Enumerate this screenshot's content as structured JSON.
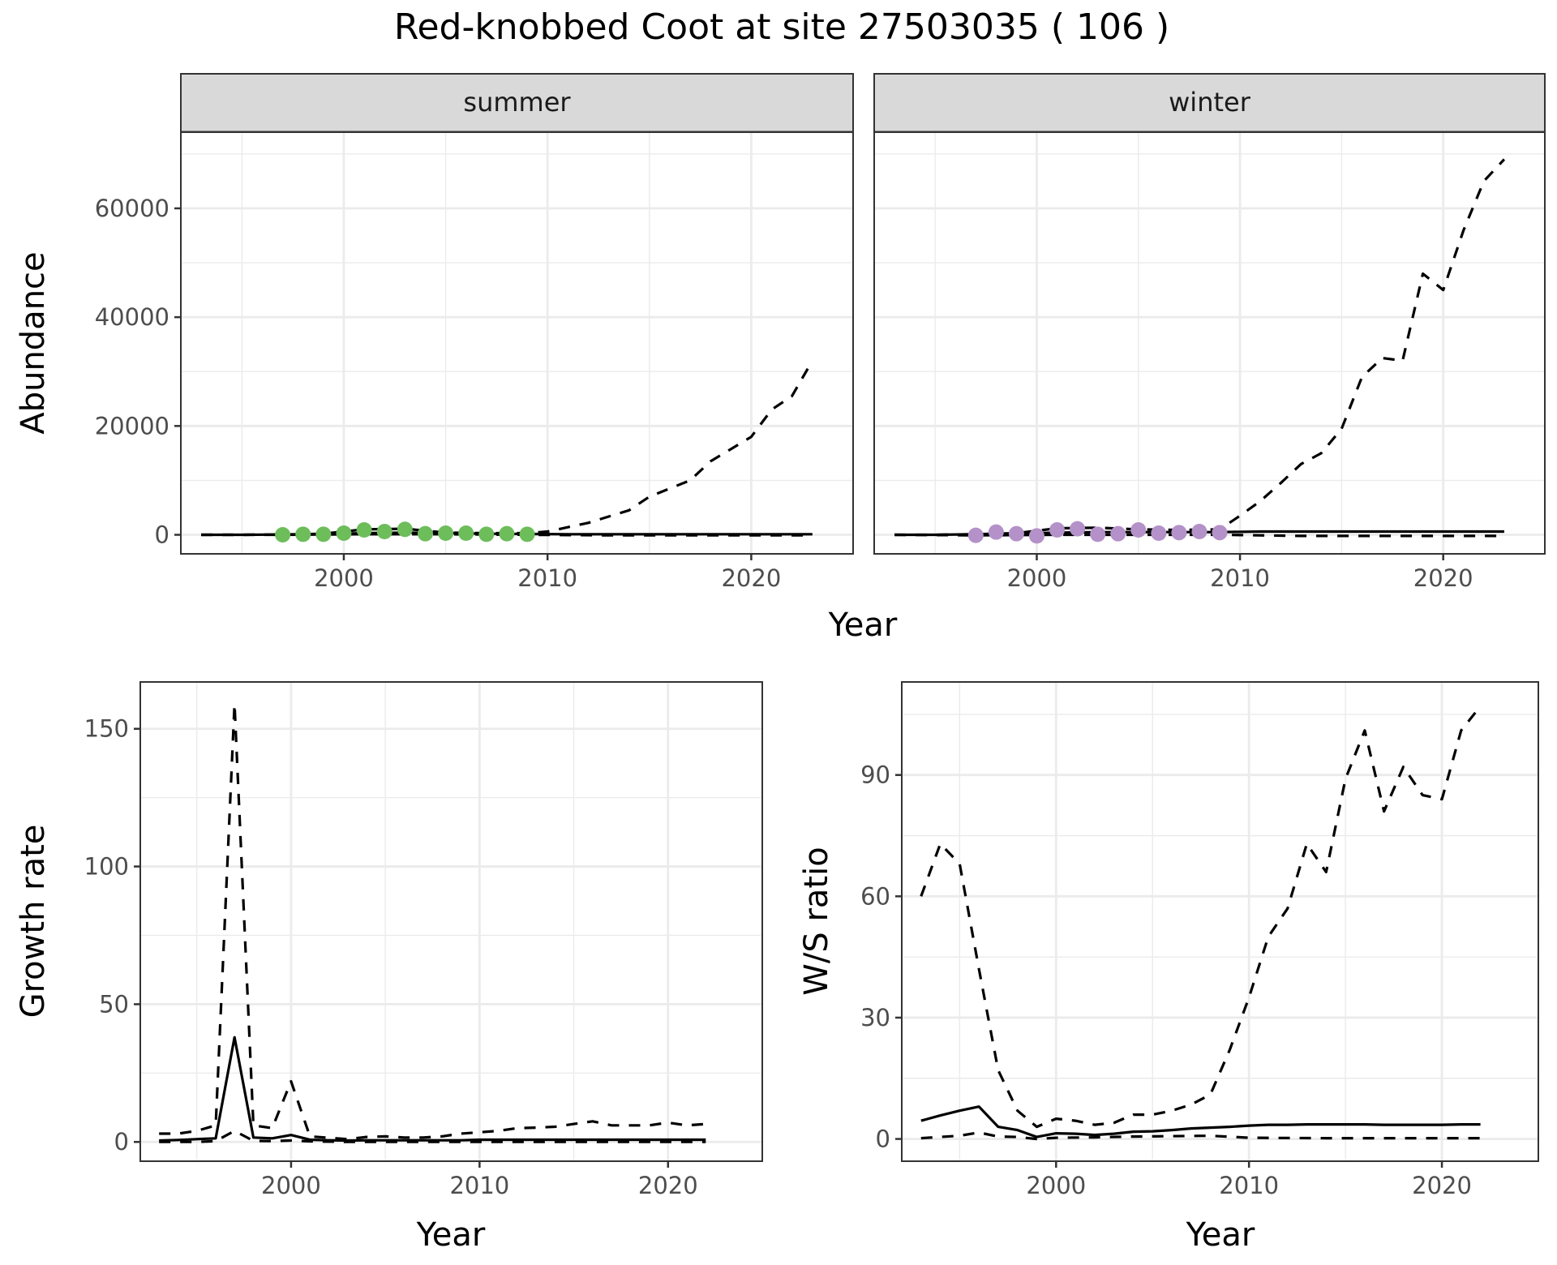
{
  "title": "Red-knobbed Coot at site 27503035 ( 106 )",
  "chart_data": [
    {
      "id": "abundance",
      "type": "line",
      "ylabel": "Abundance",
      "xlabel": "Year",
      "facets": [
        "summer",
        "winter"
      ],
      "xlim": [
        1992,
        2025
      ],
      "ylim": [
        -3500,
        74000
      ],
      "xticks": [
        2000,
        2010,
        2020
      ],
      "yticks": [
        0,
        20000,
        40000,
        60000
      ],
      "ytick_labels": [
        "0",
        "20000",
        "40000",
        "60000"
      ],
      "grid": true,
      "point_colors": {
        "summer": "#6dbd5b",
        "winter": "#b491c8"
      },
      "panels": {
        "summer": {
          "points": {
            "x": [
              1997,
              1998,
              1999,
              2000,
              2001,
              2002,
              2003,
              2004,
              2005,
              2006,
              2007,
              2008,
              2009
            ],
            "y": [
              0,
              100,
              100,
              300,
              900,
              600,
              1000,
              200,
              300,
              300,
              100,
              200,
              100
            ]
          },
          "series": [
            {
              "name": "estimate",
              "style": "solid",
              "x": [
                1993,
                1995,
                1997,
                1999,
                2001,
                2003,
                2005,
                2007,
                2009,
                2011,
                2013,
                2015,
                2017,
                2019,
                2021,
                2023
              ],
              "y": [
                0,
                0,
                50,
                100,
                300,
                400,
                300,
                200,
                150,
                100,
                100,
                100,
                100,
                100,
                100,
                100
              ]
            },
            {
              "name": "upper",
              "style": "dashed",
              "x": [
                1993,
                1995,
                1997,
                1999,
                2001,
                2003,
                2005,
                2007,
                2009,
                2010,
                2012,
                2014,
                2015,
                2017,
                2018,
                2020,
                2021,
                2022,
                2023
              ],
              "y": [
                0,
                0,
                50,
                200,
                1000,
                1100,
                400,
                300,
                300,
                600,
                2200,
                4500,
                7000,
                10000,
                13500,
                18000,
                23000,
                25500,
                32000
              ]
            },
            {
              "name": "lower",
              "style": "dashed",
              "x": [
                1993,
                1997,
                2001,
                2005,
                2009,
                2013,
                2017,
                2021,
                2023
              ],
              "y": [
                0,
                0,
                100,
                100,
                0,
                -100,
                -100,
                -100,
                -100
              ]
            }
          ]
        },
        "winter": {
          "points": {
            "x": [
              1997,
              1998,
              1999,
              2000,
              2001,
              2002,
              2003,
              2004,
              2005,
              2006,
              2007,
              2008,
              2009
            ],
            "y": [
              -100,
              500,
              200,
              -200,
              900,
              1100,
              100,
              200,
              900,
              300,
              400,
              600,
              400
            ]
          },
          "series": [
            {
              "name": "estimate",
              "style": "solid",
              "x": [
                1993,
                1995,
                1997,
                1999,
                2001,
                2003,
                2005,
                2007,
                2009,
                2011,
                2013,
                2015,
                2017,
                2019,
                2021,
                2023
              ],
              "y": [
                0,
                0,
                100,
                200,
                400,
                500,
                500,
                500,
                500,
                600,
                600,
                600,
                600,
                600,
                600,
                600
              ]
            },
            {
              "name": "upper",
              "style": "dashed",
              "x": [
                1993,
                1995,
                1997,
                1999,
                2001,
                2003,
                2005,
                2007,
                2009,
                2010,
                2011,
                2012,
                2013,
                2014,
                2015,
                2016,
                2017,
                2018,
                2019,
                2020,
                2021,
                2022,
                2023
              ],
              "y": [
                0,
                0,
                100,
                300,
                1200,
                1300,
                1000,
                900,
                1000,
                3500,
                6200,
                9500,
                13000,
                15000,
                19500,
                29000,
                32500,
                32000,
                48000,
                45000,
                56000,
                65000,
                69000
              ]
            },
            {
              "name": "lower",
              "style": "dashed",
              "x": [
                1993,
                1997,
                2001,
                2005,
                2009,
                2013,
                2017,
                2021,
                2023
              ],
              "y": [
                0,
                -100,
                0,
                0,
                0,
                -200,
                -200,
                -200,
                -200
              ]
            }
          ]
        }
      }
    },
    {
      "id": "growth-rate",
      "type": "line",
      "ylabel": "Growth rate",
      "xlabel": "Year",
      "xlim": [
        1992,
        2025
      ],
      "ylim": [
        -7,
        167
      ],
      "xticks": [
        2000,
        2010,
        2020
      ],
      "yticks": [
        0,
        50,
        100,
        150
      ],
      "ytick_labels": [
        "0",
        "50",
        "100",
        "150"
      ],
      "grid": true,
      "series": [
        {
          "name": "estimate",
          "style": "solid",
          "x": [
            1993,
            1994,
            1995,
            1996,
            1997,
            1998,
            1999,
            2000,
            2001,
            2002,
            2003,
            2004,
            2005,
            2006,
            2007,
            2008,
            2009,
            2010,
            2012,
            2014,
            2016,
            2018,
            2020,
            2022
          ],
          "y": [
            0.5,
            0.7,
            1,
            1.3,
            38,
            1.6,
            1.3,
            2.5,
            0.8,
            0.6,
            0.5,
            0.6,
            0.6,
            0.6,
            0.6,
            0.6,
            0.6,
            0.8,
            0.8,
            0.8,
            0.8,
            0.8,
            0.8,
            0.8
          ]
        },
        {
          "name": "upper",
          "style": "dashed",
          "x": [
            1993,
            1994,
            1995,
            1996,
            1997,
            1998,
            1999,
            2000,
            2001,
            2002,
            2003,
            2004,
            2005,
            2006,
            2007,
            2008,
            2009,
            2010,
            2011,
            2012,
            2013,
            2014,
            2015,
            2016,
            2017,
            2018,
            2019,
            2020,
            2021,
            2022
          ],
          "y": [
            3,
            3,
            4,
            6,
            159,
            6,
            5,
            22,
            2,
            1.5,
            1,
            1.8,
            2,
            1.6,
            1.6,
            2,
            3,
            3.5,
            4,
            5,
            5.2,
            5.5,
            6.5,
            7.5,
            6,
            6,
            6,
            7,
            6,
            6.5
          ]
        },
        {
          "name": "lower",
          "style": "dashed",
          "x": [
            1993,
            1995,
            1996,
            1997,
            1998,
            1999,
            2000,
            2001,
            2003,
            2006,
            2010,
            2014,
            2018,
            2022
          ],
          "y": [
            0,
            0,
            0.3,
            4,
            0.4,
            0.3,
            0.5,
            0.2,
            0,
            0,
            0,
            0,
            0,
            0
          ]
        }
      ]
    },
    {
      "id": "ws-ratio",
      "type": "line",
      "ylabel": "W/S ratio",
      "xlabel": "Year",
      "xlim": [
        1992,
        2025
      ],
      "ylim": [
        -5.5,
        113
      ],
      "xticks": [
        2000,
        2010,
        2020
      ],
      "yticks": [
        0,
        30,
        60,
        90
      ],
      "ytick_labels": [
        "0",
        "30",
        "60",
        "90"
      ],
      "grid": true,
      "series": [
        {
          "name": "estimate",
          "style": "solid",
          "x": [
            1993,
            1994,
            1995,
            1996,
            1997,
            1998,
            1999,
            2000,
            2001,
            2002,
            2003,
            2004,
            2005,
            2006,
            2007,
            2008,
            2009,
            2010,
            2011,
            2012,
            2013,
            2014,
            2015,
            2016,
            2017,
            2018,
            2019,
            2020,
            2021,
            2022
          ],
          "y": [
            4.5,
            5.8,
            7,
            8,
            3,
            2.2,
            0.5,
            1.4,
            1.3,
            1,
            1.3,
            1.8,
            1.9,
            2.2,
            2.6,
            2.8,
            3,
            3.3,
            3.5,
            3.5,
            3.6,
            3.6,
            3.6,
            3.6,
            3.5,
            3.5,
            3.5,
            3.5,
            3.6,
            3.6
          ]
        },
        {
          "name": "upper",
          "style": "dashed",
          "x": [
            1993,
            1994,
            1995,
            1996,
            1997,
            1998,
            1999,
            2000,
            2001,
            2002,
            2003,
            2004,
            2005,
            2006,
            2007,
            2008,
            2009,
            2010,
            2011,
            2012,
            2013,
            2014,
            2015,
            2016,
            2017,
            2018,
            2019,
            2020,
            2021,
            2022
          ],
          "y": [
            60,
            73,
            68,
            42,
            17,
            7,
            3,
            5,
            4.5,
            3.5,
            4,
            6,
            6,
            7,
            8.5,
            11,
            22,
            35,
            50,
            57,
            73,
            66,
            89,
            101,
            81,
            92,
            85,
            84,
            101,
            107
          ]
        },
        {
          "name": "lower",
          "style": "dashed",
          "x": [
            1993,
            1995,
            1996,
            1997,
            1998,
            1999,
            2000,
            2002,
            2004,
            2006,
            2008,
            2010,
            2014,
            2018,
            2022
          ],
          "y": [
            0.2,
            0.8,
            1.6,
            0.6,
            0.5,
            0,
            0.3,
            0.4,
            0.6,
            0.7,
            0.8,
            0.3,
            0.2,
            0.2,
            0.2
          ]
        }
      ]
    }
  ]
}
